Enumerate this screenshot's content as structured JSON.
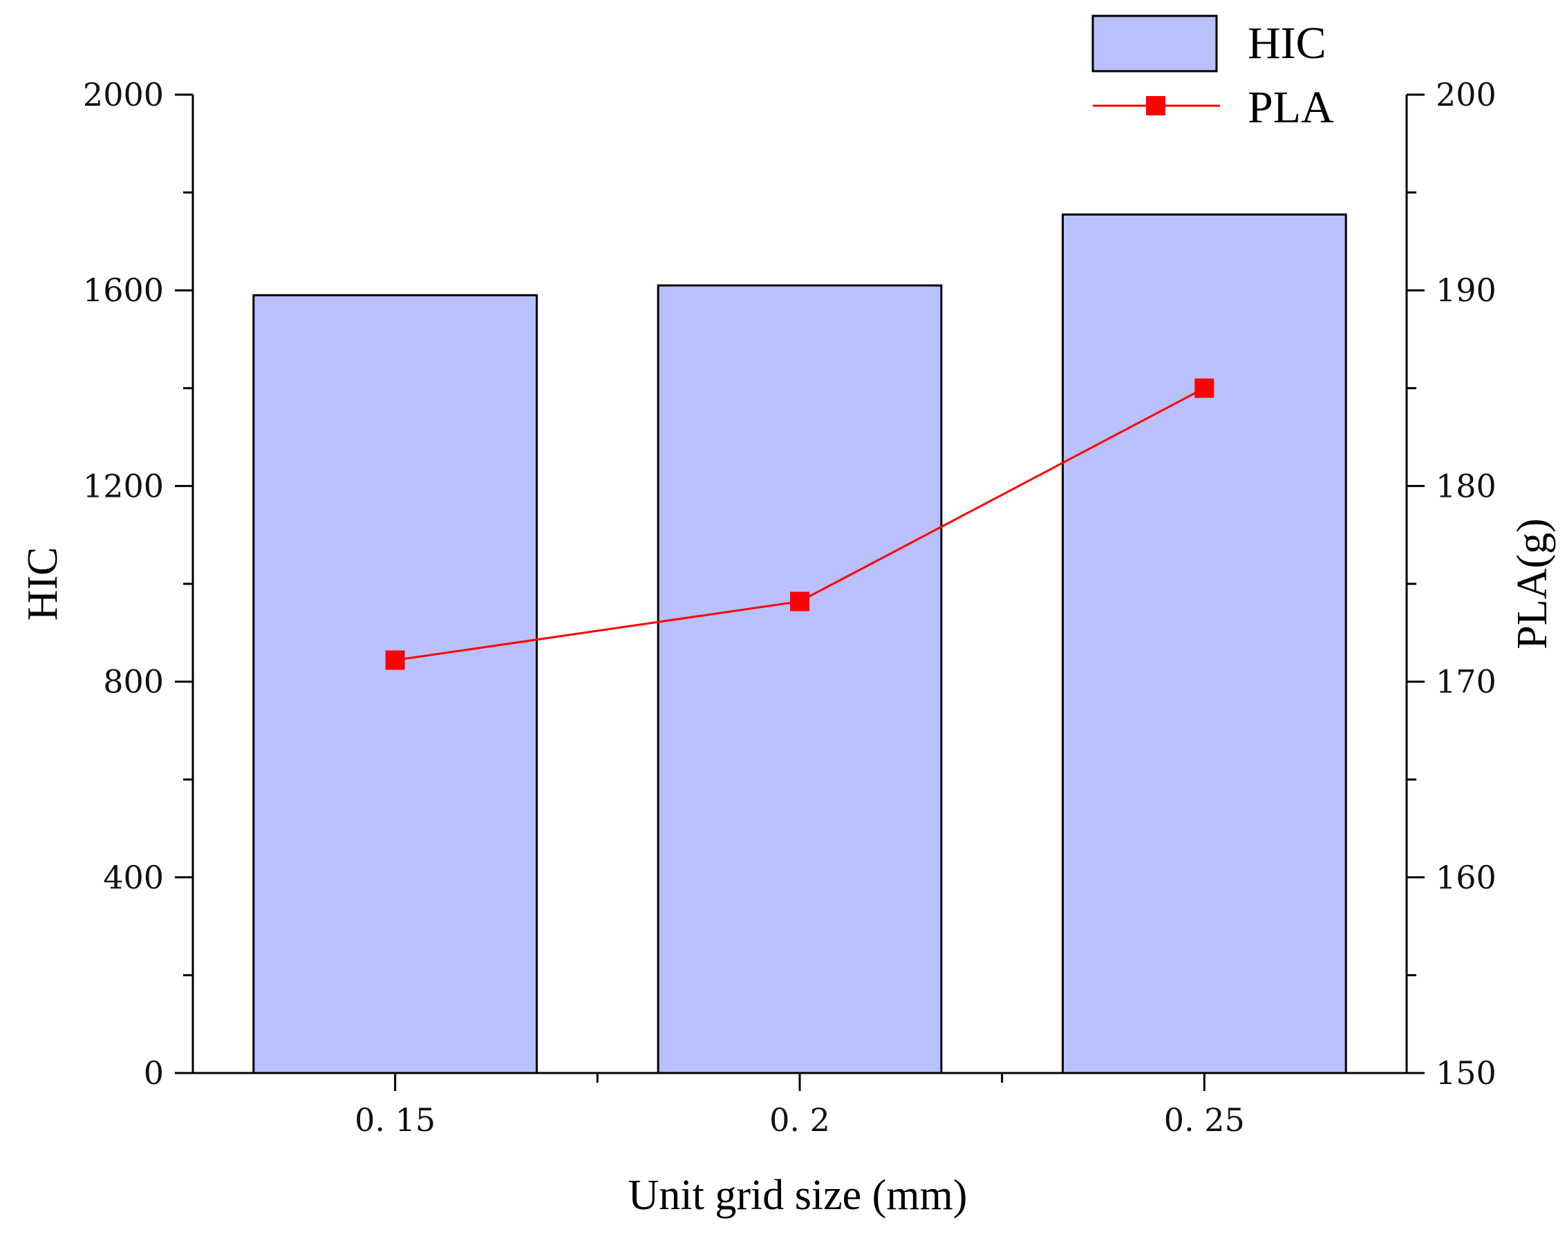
{
  "chart_data": {
    "type": "bar",
    "categories": [
      "0. 15",
      "0. 2",
      "0. 25"
    ],
    "xlabel": "Unit grid size (mm)",
    "ylabel": "HIC",
    "y2label": "PLA(g)",
    "ylim": [
      0,
      2000
    ],
    "y2lim": [
      150,
      200
    ],
    "yticks": [
      "0",
      "400",
      "800",
      "1200",
      "1600",
      "2000"
    ],
    "y2ticks": [
      "150",
      "160",
      "170",
      "180",
      "190",
      "200"
    ],
    "grid": false,
    "legend_position": "top-right",
    "series": [
      {
        "name": "HIC",
        "type": "bar",
        "axis": "left",
        "values": [
          1590,
          1610,
          1755
        ],
        "color": "#b9c0fb",
        "edge_color": "#000000"
      },
      {
        "name": "PLA",
        "type": "line",
        "axis": "right",
        "marker": "square",
        "values": [
          171.1,
          174.1,
          185.0
        ],
        "color": "#ff0000"
      }
    ]
  }
}
